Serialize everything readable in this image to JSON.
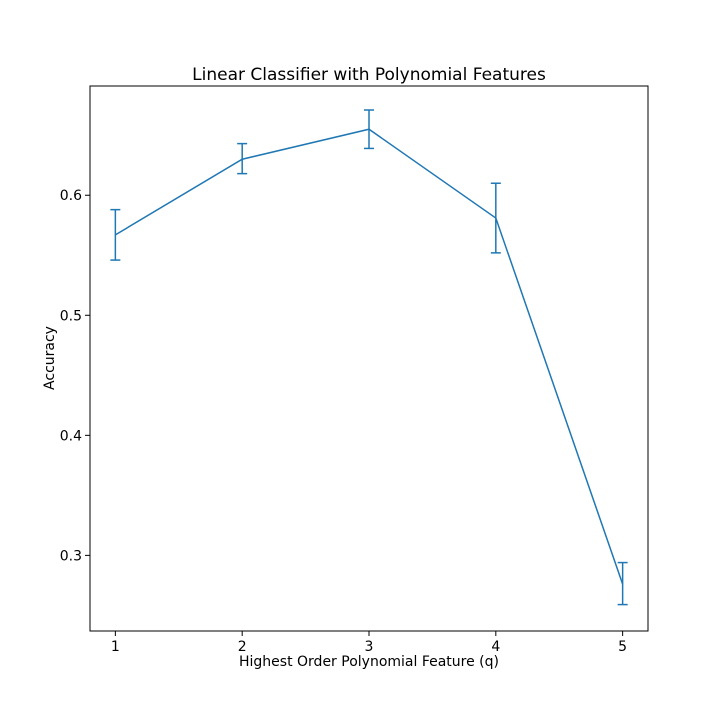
{
  "chart_data": {
    "type": "line",
    "title": "Linear Classifier with Polynomial Features",
    "xlabel": "Highest Order Polynomial Feature (q)",
    "ylabel": "Accuracy",
    "x": [
      1,
      2,
      3,
      4,
      5
    ],
    "xticks": [
      "1",
      "2",
      "3",
      "4",
      "5"
    ],
    "xlim": [
      0.8,
      5.2
    ],
    "yticks": [
      "0.3",
      "0.4",
      "0.5",
      "0.6"
    ],
    "ylim": [
      0.237,
      0.691
    ],
    "grid": false,
    "series": [
      {
        "values": [
          0.567,
          0.63,
          0.655,
          0.581,
          0.276
        ],
        "error_low": [
          0.546,
          0.618,
          0.639,
          0.552,
          0.259
        ],
        "error_high": [
          0.588,
          0.643,
          0.671,
          0.61,
          0.294
        ],
        "color": "#1f77b4"
      }
    ]
  }
}
